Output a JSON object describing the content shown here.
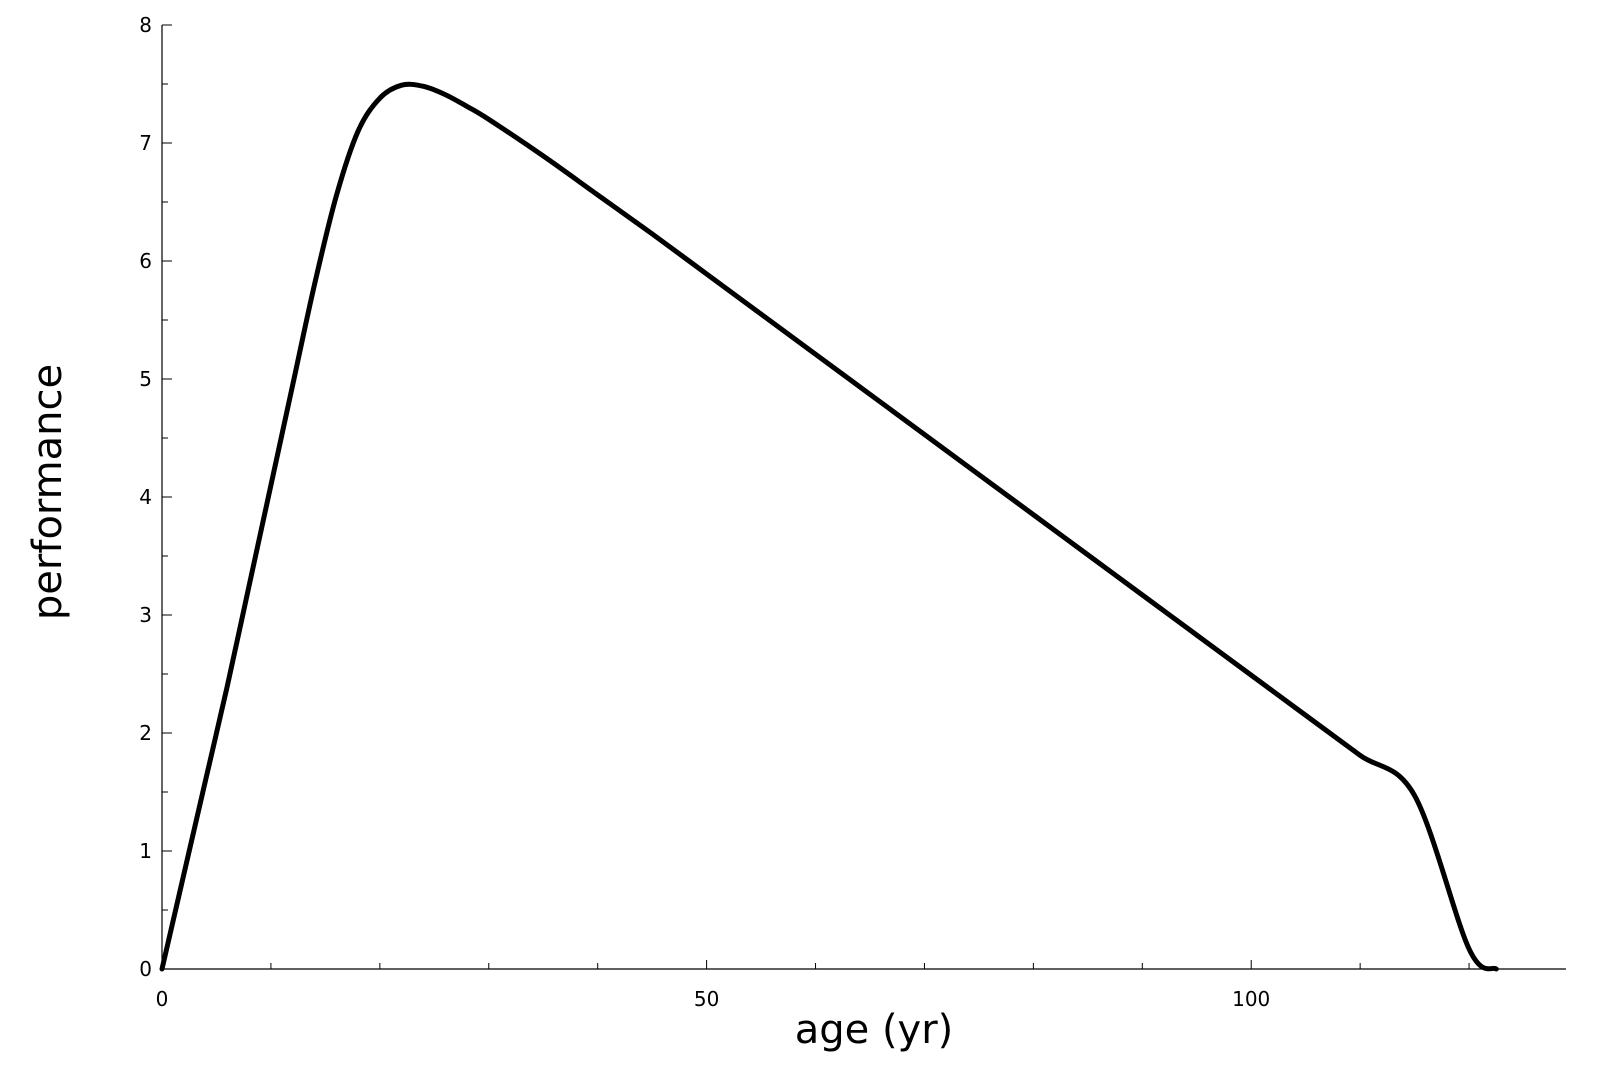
{
  "chart_data": {
    "type": "line",
    "title": "",
    "xlabel": "age (yr)",
    "ylabel": "performance",
    "xlim": [
      0,
      125
    ],
    "ylim": [
      0,
      8
    ],
    "x_ticks_major": [
      0,
      50,
      100
    ],
    "x_ticks_minor_step": 10,
    "y_ticks_major": [
      0,
      1,
      2,
      3,
      4,
      5,
      6,
      7,
      8
    ],
    "y_ticks_minor_step": 0.5,
    "grid": false,
    "legend": "none",
    "line_color": "#000000",
    "series": [
      {
        "x": [
          0,
          2,
          4,
          6,
          8,
          10,
          12,
          14,
          16,
          18,
          20,
          22,
          24,
          26,
          28,
          30,
          35,
          40,
          45,
          50,
          55,
          60,
          65,
          70,
          75,
          80,
          85,
          90,
          95,
          100,
          105,
          110,
          115,
          120,
          122.5
        ],
        "values": [
          0.0,
          0.8,
          1.6,
          2.4,
          3.25,
          4.1,
          4.95,
          5.8,
          6.55,
          7.1,
          7.38,
          7.49,
          7.48,
          7.41,
          7.31,
          7.2,
          6.89,
          6.56,
          6.23,
          5.89,
          5.55,
          5.21,
          4.87,
          4.53,
          4.19,
          3.85,
          3.51,
          3.17,
          2.83,
          2.49,
          2.15,
          1.81,
          1.47,
          0.17,
          0.0
        ]
      }
    ]
  }
}
